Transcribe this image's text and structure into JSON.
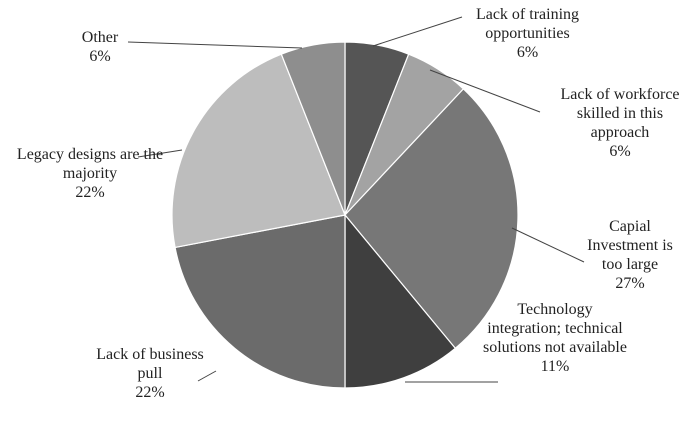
{
  "chart_data": {
    "type": "pie",
    "categories": [
      "Lack of training opportunities",
      "Lack of workforce skilled in this approach",
      "Capial Investment is too large",
      "Technology integration; technical solutions not available",
      "Lack of business pull",
      "Legacy designs are the majority",
      "Other"
    ],
    "values": [
      6,
      6,
      27,
      11,
      22,
      22,
      6
    ],
    "value_labels": [
      "6%",
      "6%",
      "27%",
      "11%",
      "22%",
      "22%",
      "6%"
    ],
    "colors": [
      "#555555",
      "#a3a3a3",
      "#777777",
      "#3f3f3f",
      "#6b6b6b",
      "#bdbdbd",
      "#8e8e8e"
    ]
  }
}
